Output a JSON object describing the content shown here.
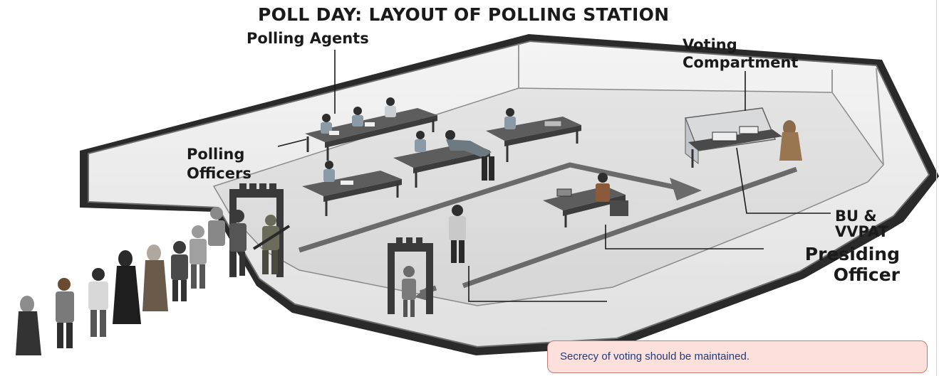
{
  "diagram": {
    "title": "POLL DAY: LAYOUT OF POLLING STATION",
    "labels": {
      "polling_agents": "Polling Agents",
      "voting_compartment_line1": "Voting",
      "voting_compartment_line2": "Compartment",
      "polling_officers_line1": "Polling",
      "polling_officers_line2": "Officers",
      "bu_vvpat_line1": "BU &",
      "bu_vvpat_line2": "VVPAT",
      "presiding_officer_line1": "Presiding",
      "presiding_officer_line2": "Officer"
    },
    "note": "Secrecy of voting should be maintained."
  }
}
